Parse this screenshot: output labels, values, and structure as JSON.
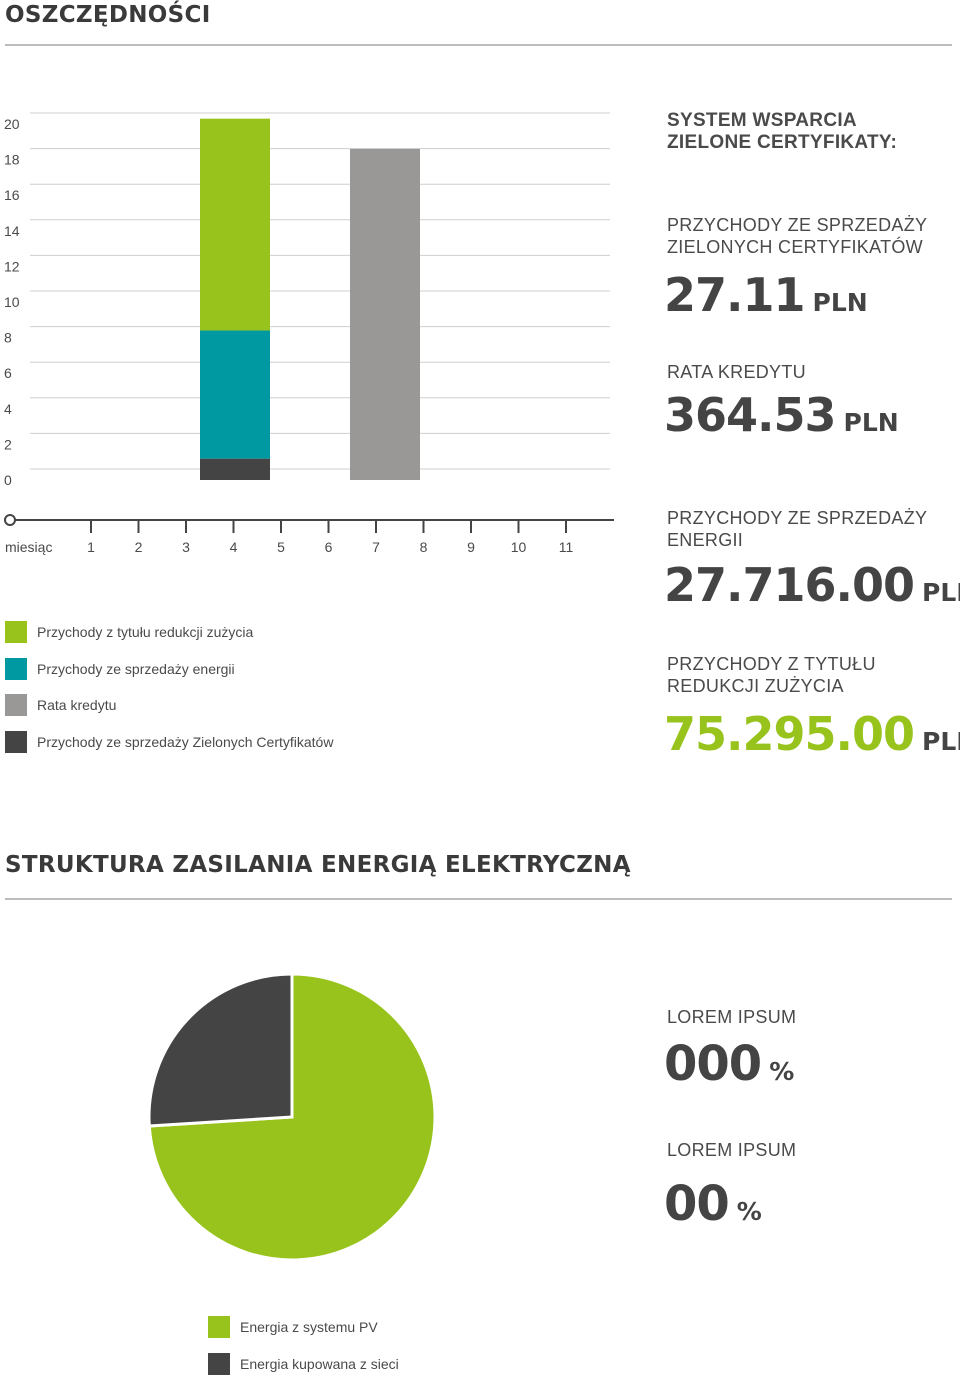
{
  "savings_title": "OSZCZĘDNOŚCI",
  "structure_title": "STRUKTURA ZASILANIA ENERGIĄ ELEKTRYCZNĄ",
  "colors": {
    "green": "#97c31c",
    "teal": "#0099a1",
    "gray": "#999896",
    "dark": "#444444"
  },
  "chart_data": [
    {
      "type": "bar",
      "stacked": true,
      "ylim": [
        0,
        20
      ],
      "yticks": [
        "0",
        "2",
        "4",
        "6",
        "8",
        "10",
        "12",
        "14",
        "16",
        "18",
        "20"
      ],
      "grid": true,
      "bars": [
        {
          "segments": [
            {
              "series": "Przychody ze sprzedaży Zielonych Certyfikatów",
              "value": 1.2,
              "color": "#444444"
            },
            {
              "series": "Przychody ze sprzedaży energii",
              "value": 7.2,
              "color": "#0099a1"
            },
            {
              "series": "Przychody z tytułu redukcji zużycia",
              "value": 11.9,
              "color": "#97c31c"
            }
          ]
        },
        {
          "segments": [
            {
              "series": "Rata kredytu",
              "value": 18.6,
              "color": "#999896"
            }
          ]
        }
      ],
      "timeline": {
        "label": "miesiąc",
        "ticks": [
          "1",
          "2",
          "3",
          "4",
          "5",
          "6",
          "7",
          "8",
          "9",
          "10",
          "11"
        ]
      },
      "legend": [
        {
          "label": "Przychody z tytułu redukcji zużycia",
          "color": "#97c31c"
        },
        {
          "label": "Przychody ze sprzedaży energii",
          "color": "#0099a1"
        },
        {
          "label": "Rata kredytu",
          "color": "#999896"
        },
        {
          "label": "Przychody ze sprzedaży Zielonych Certyfikatów",
          "color": "#444444"
        }
      ]
    },
    {
      "type": "pie",
      "slices": [
        {
          "label": "Energia z systemu PV",
          "value": 74,
          "color": "#97c31c"
        },
        {
          "label": "Energia kupowana z sieci",
          "value": 26,
          "color": "#444444"
        }
      ],
      "legend": [
        {
          "label": "Energia z systemu PV",
          "color": "#97c31c"
        },
        {
          "label": "Energia kupowana z sieci",
          "color": "#444444"
        }
      ]
    }
  ],
  "stats": {
    "heading_line1": "SYSTEM WSPARCIA",
    "heading_line2": "ZIELONE CERTYFIKATY:",
    "green_cert_label_1": "PRZYCHODY ZE SPRZEDAŻY",
    "green_cert_label_2": "ZIELONYCH CERTYFIKATÓW",
    "green_cert_value": "27.11",
    "loan_label": "RATA KREDYTU",
    "loan_value": "364.53",
    "energy_label_1": "PRZYCHODY ZE SPRZEDAŻY",
    "energy_label_2": "ENERGII",
    "energy_value": "27.716.00",
    "reduction_label_1": "PRZYCHODY Z TYTUŁU",
    "reduction_label_2": "REDUKCJI ZUŻYCIA",
    "reduction_value": "75.295.00",
    "currency": "PLN"
  },
  "pie_stats": {
    "label_1": "LOREM IPSUM",
    "value_1": "000",
    "label_2": "LOREM IPSUM",
    "value_2": "00",
    "unit": "%"
  }
}
